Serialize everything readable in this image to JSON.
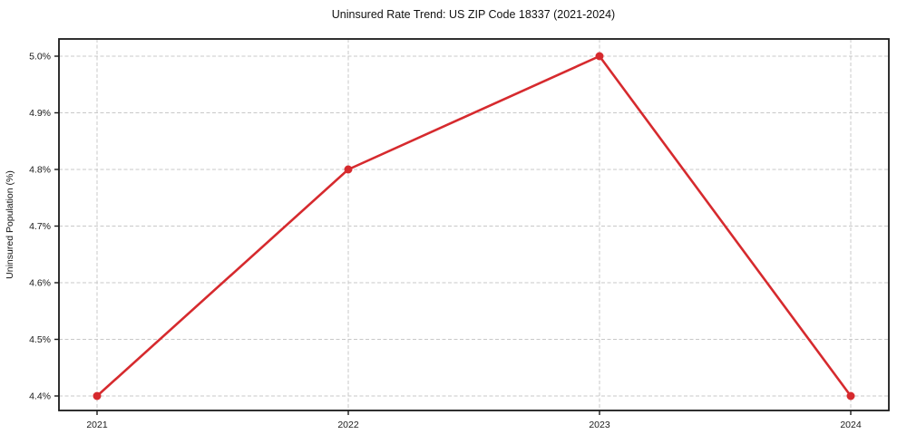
{
  "chart_data": {
    "type": "line",
    "title": "Uninsured Rate Trend: US ZIP Code 18337 (2021-2024)",
    "xlabel": "",
    "ylabel": "Uninsured Population (%)",
    "categories": [
      "2021",
      "2022",
      "2023",
      "2024"
    ],
    "series": [
      {
        "name": "Uninsured Rate",
        "values": [
          4.4,
          4.8,
          5.0,
          4.4
        ],
        "color": "#d62a2e",
        "marker": "circle"
      }
    ],
    "yticks": [
      4.4,
      4.5,
      4.6,
      4.7,
      4.8,
      4.9,
      5.0
    ],
    "ytick_labels": [
      "4.4%",
      "4.5%",
      "4.6%",
      "4.7%",
      "4.8%",
      "4.9%",
      "5.0%"
    ],
    "ylim": [
      4.374,
      5.03
    ],
    "grid": true,
    "grid_style": "dashed",
    "grid_color": "#c8c8c8",
    "axis_color": "#1a1a1a",
    "legend_position": "none"
  }
}
